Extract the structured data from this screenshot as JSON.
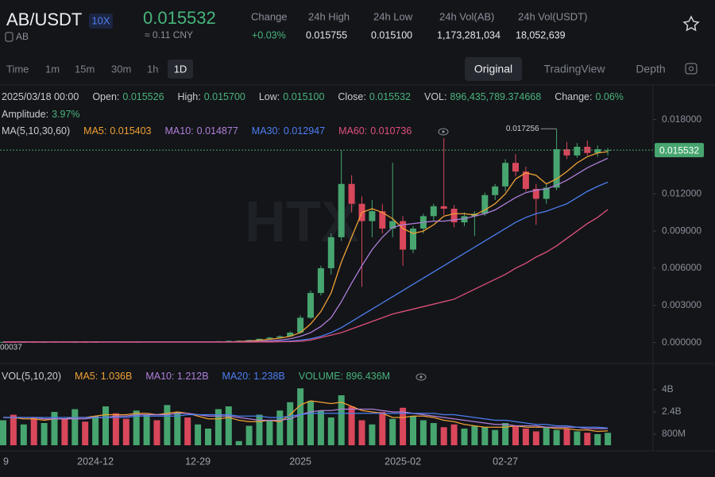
{
  "header": {
    "pair": "AB/USDT",
    "leverage": "10X",
    "price": "0.015532",
    "cny": "≈ 0.11 CNY",
    "coin": "AB",
    "stats": [
      {
        "label": "Change",
        "value": "+0.03%"
      },
      {
        "label": "24h High",
        "value": "0.015755"
      },
      {
        "label": "24h Low",
        "value": "0.015100"
      },
      {
        "label": "24h Vol(AB)",
        "value": "1,173,281,034"
      },
      {
        "label": "24h Vol(USDT)",
        "value": "18,052,639"
      }
    ]
  },
  "toolbar": {
    "intervals": [
      "Time",
      "1m",
      "15m",
      "30m",
      "1h",
      "1D"
    ],
    "views": [
      "Original",
      "TradingView",
      "Depth"
    ]
  },
  "info": {
    "datetime": "2025/03/18 00:00",
    "fields": [
      {
        "label": "Open:",
        "value": "0.015526"
      },
      {
        "label": "High:",
        "value": "0.015700"
      },
      {
        "label": "Low:",
        "value": "0.015100"
      },
      {
        "label": "Close:",
        "value": "0.015532"
      },
      {
        "label": "VOL:",
        "value": "896,435,789.374668"
      },
      {
        "label": "Change:",
        "value": "0.06%"
      }
    ],
    "amplitude": {
      "label": "Amplitude:",
      "value": "3.97%"
    }
  },
  "price_chart": {
    "type": "candlestick",
    "watermark": "HTX",
    "legend_title": "MA(5,10,30,60)",
    "up_color": "#47a56f",
    "down_color": "#d9475b",
    "categories": [
      "9",
      null,
      null,
      null,
      null,
      null,
      null,
      null,
      null,
      "2024-12",
      null,
      null,
      null,
      null,
      null,
      null,
      null,
      null,
      null,
      "12-29",
      null,
      null,
      null,
      null,
      null,
      null,
      null,
      null,
      null,
      "2025",
      null,
      null,
      null,
      null,
      null,
      null,
      null,
      null,
      null,
      "2025-02",
      null,
      null,
      null,
      null,
      null,
      null,
      null,
      null,
      null,
      "02-27",
      null,
      null,
      null,
      null,
      null,
      null,
      null,
      null,
      null,
      null
    ],
    "candles": [
      [
        4e-05,
        6e-05,
        3.7e-05,
        5e-05
      ],
      [
        5e-05,
        6e-05,
        4e-05,
        4e-05
      ],
      [
        4e-05,
        5e-05,
        4e-05,
        5e-05
      ],
      [
        5e-05,
        6e-05,
        4e-05,
        4e-05
      ],
      [
        4e-05,
        5e-05,
        4e-05,
        5e-05
      ],
      [
        5e-05,
        7e-05,
        4e-05,
        6e-05
      ],
      [
        6e-05,
        7e-05,
        5e-05,
        5e-05
      ],
      [
        5e-05,
        6e-05,
        4e-05,
        5e-05
      ],
      [
        5e-05,
        6e-05,
        4e-05,
        4e-05
      ],
      [
        4e-05,
        6e-05,
        4e-05,
        5e-05
      ],
      [
        5e-05,
        8e-05,
        5e-05,
        7e-05
      ],
      [
        7e-05,
        8e-05,
        5e-05,
        6e-05
      ],
      [
        6e-05,
        7e-05,
        5e-05,
        5e-05
      ],
      [
        5e-05,
        7e-05,
        5e-05,
        6e-05
      ],
      [
        6e-05,
        8e-05,
        5e-05,
        7e-05
      ],
      [
        7e-05,
        8e-05,
        6e-05,
        6e-05
      ],
      [
        6e-05,
        9e-05,
        6e-05,
        8e-05
      ],
      [
        8e-05,
        0.0001,
        7e-05,
        9e-05
      ],
      [
        9e-05,
        0.0001,
        7e-05,
        8e-05
      ],
      [
        8e-05,
        0.0001,
        7e-05,
        9e-05
      ],
      [
        9e-05,
        0.00011,
        8e-05,
        0.0001
      ],
      [
        0.0001,
        0.00012,
        9e-05,
        0.00011
      ],
      [
        0.00011,
        0.00016,
        0.0001,
        0.00014
      ],
      [
        0.00014,
        0.00018,
        0.00012,
        0.00015
      ],
      [
        0.00015,
        0.00022,
        0.00014,
        0.0002
      ],
      [
        0.0002,
        0.00032,
        0.00019,
        0.0003
      ],
      [
        0.0003,
        0.00045,
        0.00028,
        0.0004
      ],
      [
        0.0004,
        0.00058,
        0.00036,
        0.0005
      ],
      [
        0.0005,
        0.0009,
        0.00048,
        0.0008
      ],
      [
        0.0008,
        0.0022,
        0.0007,
        0.002
      ],
      [
        0.002,
        0.0042,
        0.0019,
        0.004
      ],
      [
        0.004,
        0.0062,
        0.0038,
        0.006
      ],
      [
        0.006,
        0.0088,
        0.0055,
        0.0085
      ],
      [
        0.0085,
        0.0155,
        0.0082,
        0.0128
      ],
      [
        0.0128,
        0.0135,
        0.0105,
        0.0112
      ],
      [
        0.0112,
        0.0118,
        0.0045,
        0.0098
      ],
      [
        0.0098,
        0.0115,
        0.0085,
        0.0106
      ],
      [
        0.0106,
        0.0112,
        0.0088,
        0.0092
      ],
      [
        0.0092,
        0.0145,
        0.0085,
        0.0098
      ],
      [
        0.0098,
        0.0102,
        0.0062,
        0.0075
      ],
      [
        0.0075,
        0.0094,
        0.0072,
        0.0092
      ],
      [
        0.0092,
        0.0104,
        0.0088,
        0.0102
      ],
      [
        0.0102,
        0.0112,
        0.0098,
        0.011
      ],
      [
        0.011,
        0.0165,
        0.0103,
        0.0108
      ],
      [
        0.0108,
        0.0111,
        0.0093,
        0.0097
      ],
      [
        0.0097,
        0.0105,
        0.0094,
        0.0102
      ],
      [
        0.0102,
        0.0106,
        0.0086,
        0.0104
      ],
      [
        0.0104,
        0.0121,
        0.0102,
        0.0119
      ],
      [
        0.0119,
        0.0128,
        0.0115,
        0.0126
      ],
      [
        0.0126,
        0.0148,
        0.0122,
        0.0145
      ],
      [
        0.0145,
        0.0152,
        0.0134,
        0.0138
      ],
      [
        0.0138,
        0.0142,
        0.0122,
        0.0124
      ],
      [
        0.0124,
        0.0128,
        0.0095,
        0.0116
      ],
      [
        0.0116,
        0.0128,
        0.0112,
        0.0125
      ],
      [
        0.0125,
        0.017256,
        0.0123,
        0.0156
      ],
      [
        0.0156,
        0.0162,
        0.0148,
        0.0151
      ],
      [
        0.0151,
        0.0161,
        0.0149,
        0.0158
      ],
      [
        0.0158,
        0.0163,
        0.0151,
        0.0153
      ],
      [
        0.0153,
        0.0159,
        0.015,
        0.0156
      ],
      [
        0.015526,
        0.0157,
        0.0151,
        0.015532
      ]
    ],
    "ylim": [
      -0.0015,
      0.0206
    ],
    "yticks": [
      {
        "value": 0.018,
        "label": "0.018000"
      },
      {
        "value": 0.012,
        "label": "0.012000"
      },
      {
        "value": 0.009,
        "label": "0.009000"
      },
      {
        "value": 0.006,
        "label": "0.006000"
      },
      {
        "value": 0.003,
        "label": "0.003000"
      },
      {
        "value": 0,
        "label": "0.000000"
      }
    ],
    "last_price": 0.015532,
    "max_marker": 0.017256,
    "min_marker": "00037",
    "ma_lines": [
      {
        "name": "MA5:",
        "value": "0.015403",
        "color": "#f0a035",
        "values": [
          5e-05,
          5e-05,
          5e-05,
          5e-05,
          5e-05,
          5e-05,
          5e-05,
          5e-05,
          5e-05,
          5e-05,
          5e-05,
          5e-05,
          5e-05,
          5e-05,
          5e-05,
          5e-05,
          5e-05,
          5e-05,
          5e-05,
          5e-05,
          5e-05,
          5e-05,
          5e-05,
          8e-05,
          0.00012,
          0.00018,
          0.00026,
          0.00036,
          0.0005,
          0.0008,
          0.0015,
          0.0025,
          0.004,
          0.0065,
          0.0085,
          0.0105,
          0.0108,
          0.0105,
          0.01,
          0.0092,
          0.0088,
          0.009,
          0.0095,
          0.0102,
          0.0104,
          0.0104,
          0.0103,
          0.0107,
          0.0112,
          0.012,
          0.0132,
          0.0137,
          0.0135,
          0.0128,
          0.0132,
          0.0138,
          0.0145,
          0.015,
          0.0153,
          0.015403
        ]
      },
      {
        "name": "MA10:",
        "value": "0.014877",
        "color": "#b07fd9",
        "values": [
          5e-05,
          5e-05,
          5e-05,
          5e-05,
          5e-05,
          5e-05,
          5e-05,
          5e-05,
          5e-05,
          5e-05,
          5e-05,
          5e-05,
          5e-05,
          5e-05,
          5e-05,
          5e-05,
          5e-05,
          5e-05,
          5e-05,
          5e-05,
          5e-05,
          5e-05,
          5e-05,
          6e-05,
          8e-05,
          0.0001,
          0.00014,
          0.0002,
          0.0003,
          0.0005,
          0.0008,
          0.0013,
          0.002,
          0.0033,
          0.0048,
          0.0062,
          0.0075,
          0.0085,
          0.0093,
          0.0095,
          0.0096,
          0.0097,
          0.0098,
          0.0098,
          0.0099,
          0.01,
          0.0102,
          0.0104,
          0.0107,
          0.0112,
          0.0117,
          0.0121,
          0.0123,
          0.0124,
          0.0127,
          0.0131,
          0.0136,
          0.0141,
          0.0145,
          0.014877
        ]
      },
      {
        "name": "MA30:",
        "value": "0.012947",
        "color": "#4d7ef0",
        "values": [
          4e-05,
          4e-05,
          4e-05,
          4e-05,
          4e-05,
          4e-05,
          4e-05,
          4e-05,
          4e-05,
          4e-05,
          4e-05,
          4e-05,
          4e-05,
          4e-05,
          4e-05,
          4e-05,
          4e-05,
          4e-05,
          4e-05,
          4e-05,
          4e-05,
          4e-05,
          4e-05,
          5e-05,
          5e-05,
          6e-05,
          7e-05,
          9e-05,
          0.00012,
          0.0002,
          0.0003,
          0.0005,
          0.0008,
          0.0012,
          0.0017,
          0.0022,
          0.0027,
          0.0032,
          0.0037,
          0.0042,
          0.0047,
          0.0052,
          0.0057,
          0.0062,
          0.0067,
          0.0072,
          0.0077,
          0.0082,
          0.0087,
          0.0092,
          0.0097,
          0.0101,
          0.0104,
          0.0106,
          0.0109,
          0.0112,
          0.0117,
          0.0122,
          0.0126,
          0.012947
        ]
      },
      {
        "name": "MA60:",
        "value": "0.010736",
        "color": "#e0507a",
        "values": [
          4e-05,
          4e-05,
          4e-05,
          4e-05,
          4e-05,
          4e-05,
          4e-05,
          4e-05,
          4e-05,
          4e-05,
          4e-05,
          4e-05,
          4e-05,
          4e-05,
          4e-05,
          4e-05,
          4e-05,
          4e-05,
          4e-05,
          4e-05,
          4e-05,
          4e-05,
          4e-05,
          4e-05,
          4e-05,
          5e-05,
          5e-05,
          6e-05,
          7e-05,
          0.0001,
          0.0002,
          0.0004,
          0.0006,
          0.0008,
          0.0011,
          0.0014,
          0.0017,
          0.002,
          0.0023,
          0.0025,
          0.0027,
          0.0029,
          0.0031,
          0.0033,
          0.0035,
          0.0039,
          0.0043,
          0.0047,
          0.0051,
          0.0055,
          0.006,
          0.0064,
          0.0069,
          0.0073,
          0.0078,
          0.0084,
          0.009,
          0.0096,
          0.0101,
          0.010736
        ]
      }
    ]
  },
  "volume_chart": {
    "type": "bar",
    "legend_title": "VOL(5,10,20)",
    "volume_label": "VOLUME: 896.436M",
    "values": [
      1.8,
      2.2,
      1.5,
      2.0,
      1.6,
      2.4,
      1.9,
      2.6,
      1.7,
      2.1,
      2.8,
      2.3,
      1.9,
      2.5,
      2.2,
      1.8,
      2.9,
      2.4,
      2.0,
      1.5,
      1.2,
      2.6,
      2.8,
      0.3,
      1.4,
      2.2,
      1.8,
      2.5,
      3.1,
      4.1,
      3.2,
      2.5,
      2.0,
      3.6,
      2.8,
      1.8,
      1.5,
      2.4,
      1.9,
      2.7,
      2.1,
      1.8,
      1.6,
      1.3,
      1.5,
      1.2,
      1.4,
      1.3,
      1.1,
      1.6,
      1.4,
      1.2,
      1.0,
      1.3,
      1.1,
      1.2,
      1.0,
      0.9,
      0.8,
      0.896436
    ],
    "ylim": [
      0,
      5.66
    ],
    "yticks": [
      {
        "value": 4,
        "label": "4B"
      },
      {
        "value": 2.4,
        "label": "2.4B"
      },
      {
        "value": 0.8,
        "label": "800M"
      }
    ],
    "ma_lines": [
      {
        "name": "MA5: 1.036B",
        "color": "#f0a035",
        "values": [
          2.0,
          2.0,
          1.9,
          1.9,
          1.8,
          1.9,
          1.9,
          2.0,
          2.0,
          2.1,
          2.2,
          2.2,
          2.2,
          2.3,
          2.3,
          2.2,
          2.3,
          2.4,
          2.3,
          2.1,
          1.9,
          1.9,
          2.0,
          1.8,
          1.7,
          1.7,
          1.8,
          1.7,
          2.2,
          2.9,
          3.2,
          3.1,
          3.0,
          3.1,
          2.8,
          2.5,
          2.4,
          2.3,
          2.0,
          2.0,
          2.1,
          2.1,
          2.0,
          1.8,
          1.7,
          1.5,
          1.4,
          1.3,
          1.3,
          1.3,
          1.4,
          1.3,
          1.3,
          1.3,
          1.2,
          1.2,
          1.1,
          1.1,
          1.0,
          1.036
        ]
      },
      {
        "name": "MA10: 1.212B",
        "color": "#b07fd9",
        "values": [
          2.0,
          2.0,
          2.0,
          2.0,
          1.9,
          1.9,
          1.9,
          1.9,
          1.9,
          2.0,
          2.0,
          2.1,
          2.1,
          2.2,
          2.2,
          2.2,
          2.2,
          2.3,
          2.3,
          2.2,
          2.1,
          2.1,
          2.1,
          2.0,
          1.9,
          1.8,
          1.8,
          1.8,
          1.9,
          2.2,
          2.4,
          2.5,
          2.5,
          2.6,
          2.6,
          2.6,
          2.6,
          2.5,
          2.4,
          2.4,
          2.3,
          2.2,
          2.1,
          2.0,
          1.9,
          1.8,
          1.7,
          1.6,
          1.5,
          1.5,
          1.4,
          1.4,
          1.4,
          1.3,
          1.3,
          1.3,
          1.3,
          1.2,
          1.2,
          1.212
        ]
      },
      {
        "name": "MA20: 1.238B",
        "color": "#4d7ef0",
        "values": [
          2.0,
          2.0,
          2.0,
          2.0,
          2.0,
          2.0,
          2.0,
          2.0,
          2.0,
          2.0,
          2.0,
          2.0,
          2.0,
          2.1,
          2.1,
          2.1,
          2.1,
          2.1,
          2.2,
          2.2,
          2.2,
          2.2,
          2.2,
          2.1,
          2.1,
          2.1,
          2.0,
          2.0,
          2.1,
          2.2,
          2.3,
          2.3,
          2.3,
          2.3,
          2.3,
          2.3,
          2.3,
          2.3,
          2.3,
          2.3,
          2.3,
          2.3,
          2.3,
          2.2,
          2.2,
          2.1,
          2.0,
          1.9,
          1.8,
          1.8,
          1.7,
          1.6,
          1.5,
          1.5,
          1.4,
          1.4,
          1.3,
          1.3,
          1.3,
          1.238
        ]
      }
    ]
  }
}
